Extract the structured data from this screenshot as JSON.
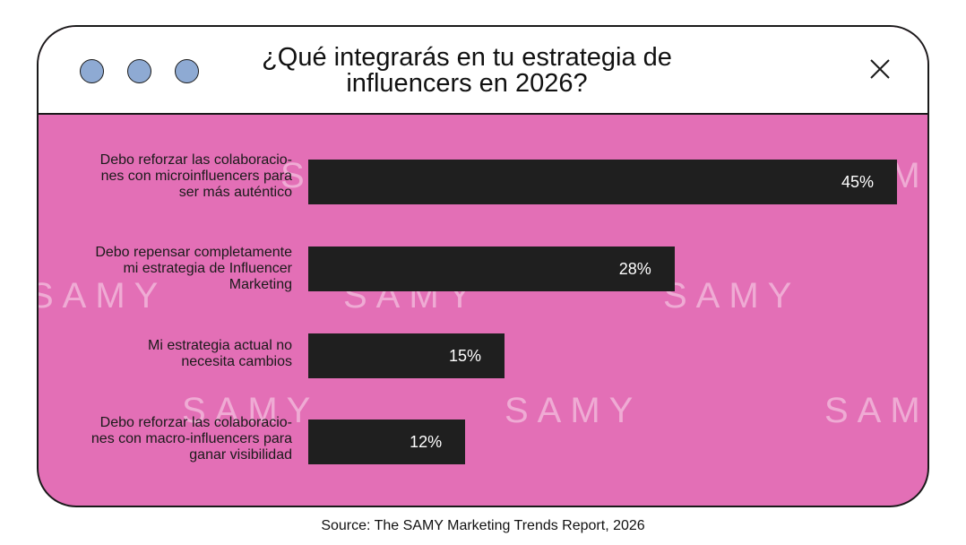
{
  "window": {
    "dot_color": "#8eaad3",
    "background_color": "#e36fb6",
    "bar_color": "#1f1f1f"
  },
  "watermark_text": "SAMY",
  "source": "Source: The SAMY Marketing Trends Report, 2026",
  "chart_data": {
    "type": "bar",
    "orientation": "horizontal",
    "title": "¿Qué integrarás en tu estrategia de influencers en 2026?",
    "categories": [
      "Debo reforzar las colaboraciones con microinfluencers para ser más auténtico",
      "Debo repensar completamente mi estrategia de Influencer Marketing",
      "Mi estrategia actual no necesita cambios",
      "Debo reforzar las colaboraciones con macro-influencers para ganar visibilidad"
    ],
    "category_lines": [
      [
        "Debo reforzar las colaboracio-",
        "nes con microinfluencers para",
        "ser más auténtico"
      ],
      [
        "Debo repensar completamente",
        "mi estrategia de Influencer",
        "Marketing"
      ],
      [
        "Mi estrategia actual no",
        "necesita cambios"
      ],
      [
        "Debo reforzar las colaboracio-",
        "nes con macro-influencers para",
        "ganar visibilidad"
      ]
    ],
    "values": [
      45,
      28,
      15,
      12
    ],
    "value_labels": [
      "45%",
      "28%",
      "15%",
      "12%"
    ],
    "unit": "%",
    "xlim": [
      0,
      45
    ],
    "grid": false,
    "legend": "none"
  }
}
